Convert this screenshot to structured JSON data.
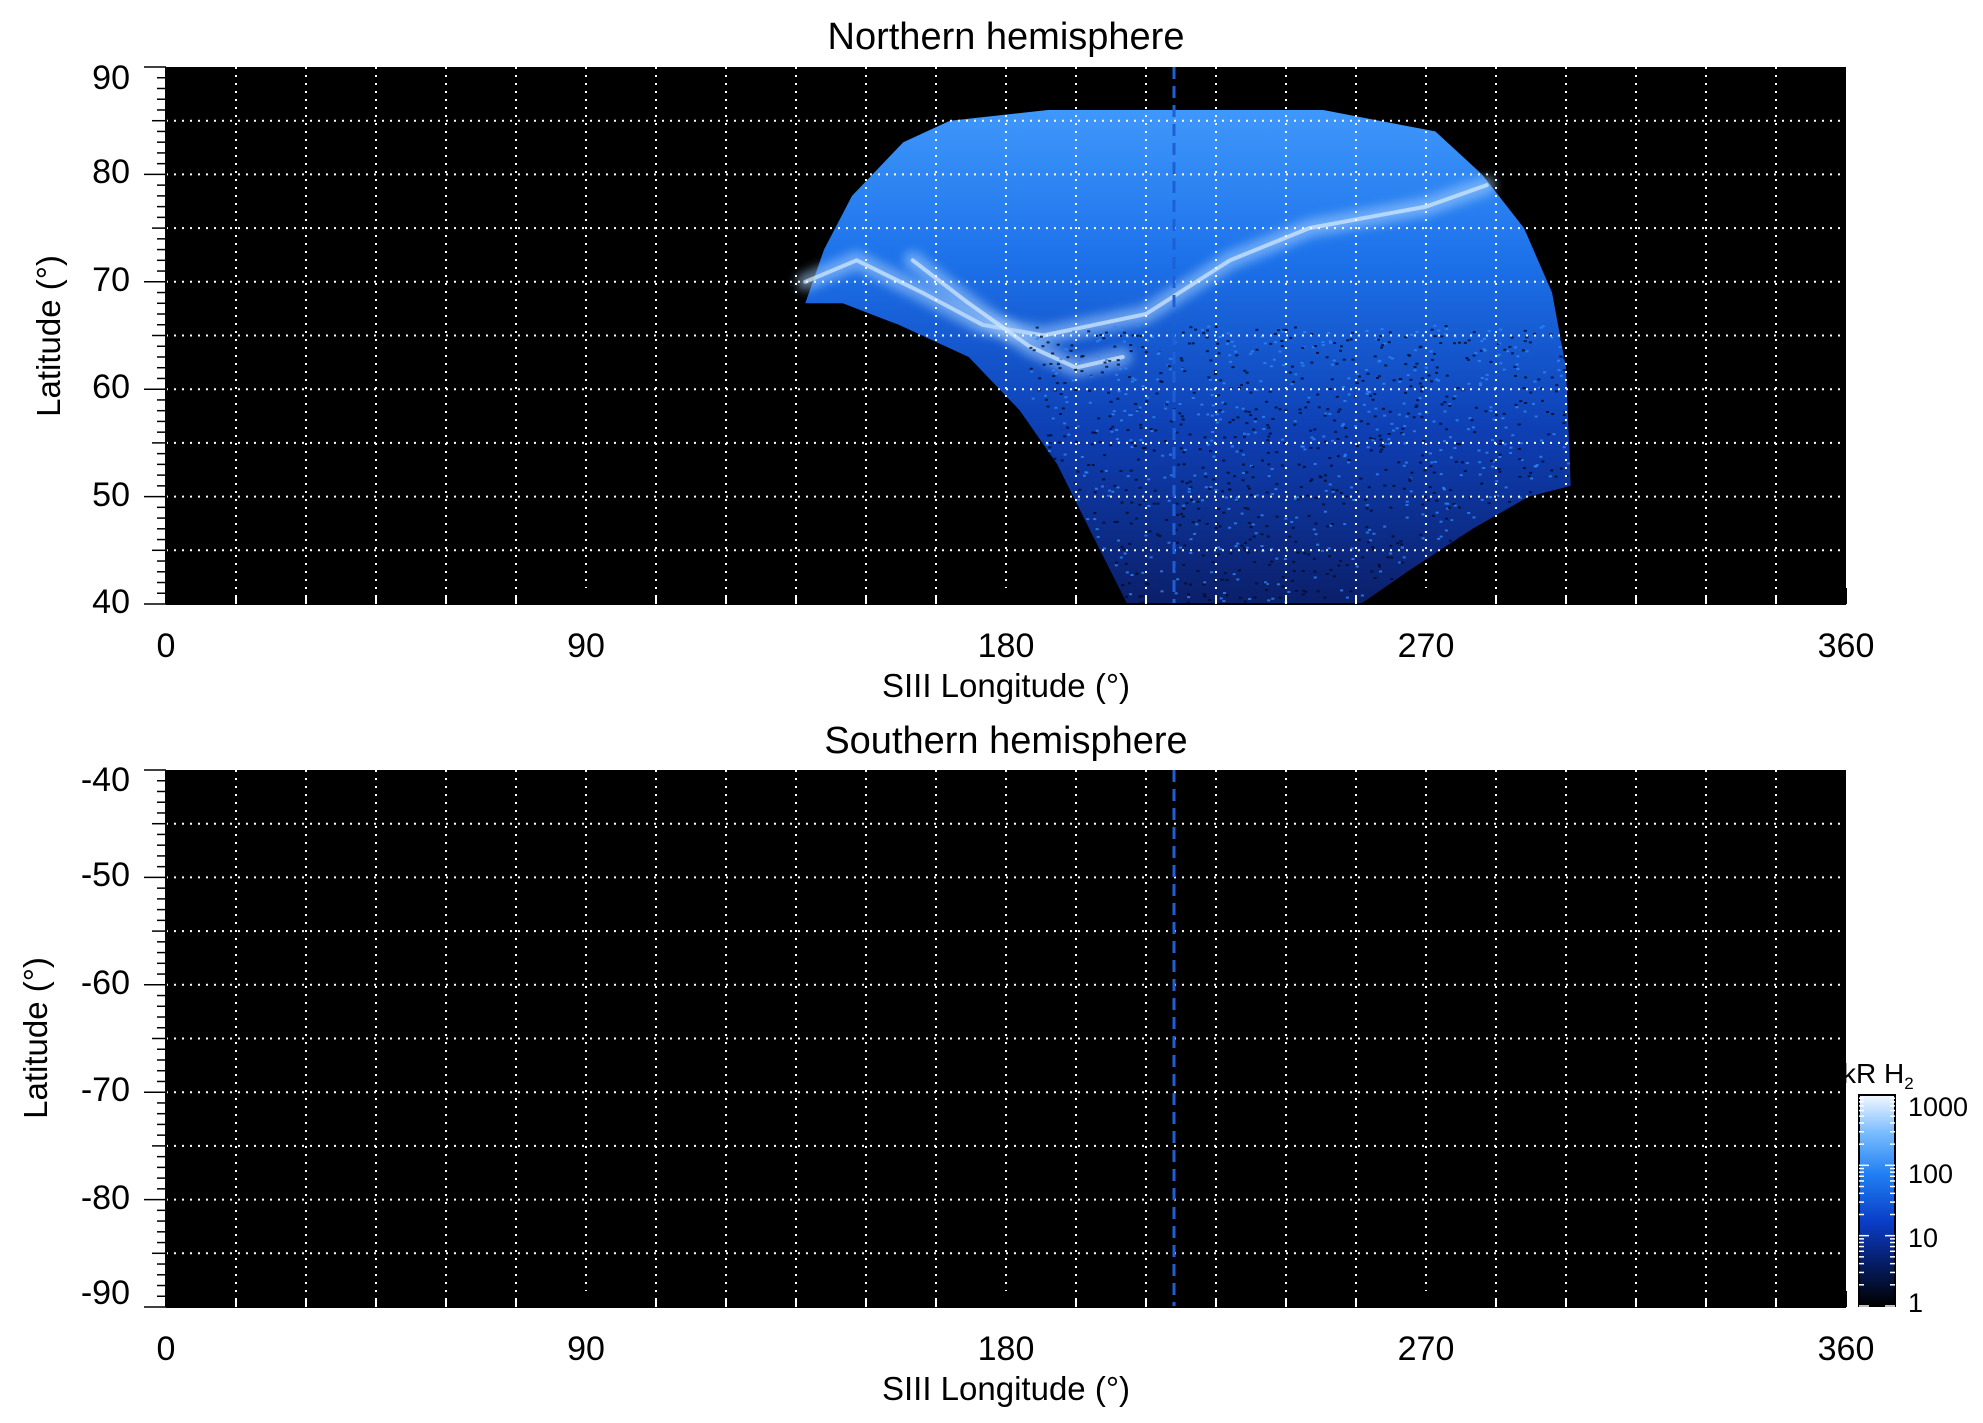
{
  "chart_data": [
    {
      "type": "heatmap",
      "panel": "north",
      "title": "Northern hemisphere",
      "xlabel": "SIII Longitude (°)",
      "ylabel": "Latitude (°)",
      "xlim": [
        0,
        360
      ],
      "ylim": [
        40,
        90
      ],
      "x_ticks": [
        "0",
        "90",
        "180",
        "270",
        "360"
      ],
      "y_ticks": [
        "40",
        "50",
        "60",
        "70",
        "80",
        "90"
      ],
      "grid": "dotted white, every 15° longitude and 5° latitude",
      "background": "#000000",
      "reference_line": {
        "style": "dashed",
        "color": "#1f5fd6",
        "x": 216
      },
      "emission_footprint": {
        "description_visible": "blue intensity map covering roughly 137°–300° longitude, 40°–86° latitude",
        "boundary": [
          [
            137,
            68
          ],
          [
            141,
            73
          ],
          [
            147,
            78
          ],
          [
            158,
            83
          ],
          [
            168,
            85
          ],
          [
            189,
            86
          ],
          [
            248,
            86
          ],
          [
            260,
            85
          ],
          [
            272,
            84
          ],
          [
            282,
            80
          ],
          [
            291,
            75
          ],
          [
            297,
            69
          ],
          [
            300,
            62
          ],
          [
            301,
            51
          ],
          [
            292,
            50
          ],
          [
            280,
            47
          ],
          [
            266,
            43
          ],
          [
            256,
            40
          ],
          [
            206,
            40
          ],
          [
            199,
            46
          ],
          [
            191,
            53
          ],
          [
            183,
            58
          ],
          [
            172,
            63
          ],
          [
            157,
            66
          ],
          [
            145,
            68
          ]
        ],
        "bright_arcs": [
          {
            "points": [
              [
                137,
                70
              ],
              [
                148,
                72
              ],
              [
                162,
                69
              ],
              [
                175,
                66
              ],
              [
                188,
                65
              ],
              [
                199,
                66
              ],
              [
                210,
                67
              ],
              [
                228,
                72
              ],
              [
                245,
                75
              ],
              [
                270,
                77
              ],
              [
                283,
                79
              ]
            ]
          },
          {
            "points": [
              [
                160,
                72
              ],
              [
                172,
                68
              ],
              [
                185,
                64
              ],
              [
                195,
                62
              ],
              [
                205,
                63
              ]
            ]
          }
        ],
        "colorscale_range_kR": [
          1,
          1000
        ]
      }
    },
    {
      "type": "heatmap",
      "panel": "south",
      "title": "Southern hemisphere",
      "xlabel": "SIII Longitude (°)",
      "ylabel": "Latitude (°)",
      "xlim": [
        0,
        360
      ],
      "ylim": [
        -90,
        -40
      ],
      "x_ticks": [
        "0",
        "90",
        "180",
        "270",
        "360"
      ],
      "y_ticks": [
        "-40",
        "-50",
        "-60",
        "-70",
        "-80",
        "-90"
      ],
      "grid": "dotted white, every 15° longitude and 5° latitude",
      "background": "#000000",
      "reference_line": {
        "style": "dashed",
        "color": "#1f5fd6",
        "x": 216
      },
      "emission_footprint": null
    }
  ],
  "colorbar": {
    "label_main": "kR H",
    "label_sub": "2",
    "scale": "log",
    "ticks": [
      "1",
      "10",
      "100",
      "1000"
    ],
    "tick_values": [
      1,
      10,
      100,
      1000
    ],
    "colors": [
      "#000000",
      "#071a5e",
      "#0a3dc8",
      "#1f7ef2",
      "#6fb6ff",
      "#e8f4ff"
    ]
  },
  "colors": {
    "grid": "#ffffff",
    "reference_line": "#1f5fd6",
    "footprint_dim": "#0d2a86",
    "footprint_mid": "#1a63e6",
    "footprint_bright": "#a9d3ff"
  }
}
